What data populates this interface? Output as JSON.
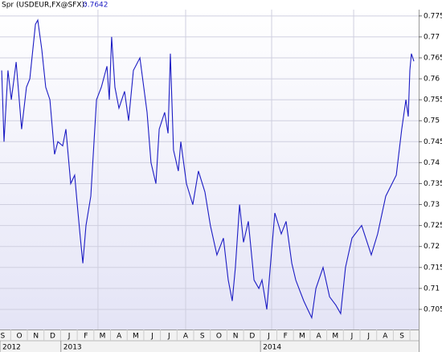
{
  "chart_data": {
    "type": "line",
    "title": "Spr (USDEUR,FX@SFX):",
    "last_value": 0.7642,
    "series": [
      {
        "name": "Spr (USDEUR,FX@SFX)",
        "color": "#1c1cc4",
        "x": [
          0.44,
          0.58,
          0.82,
          1.02,
          1.31,
          1.64,
          1.93,
          2.13,
          2.47,
          2.61,
          2.85,
          3.09,
          3.34,
          3.62,
          3.82,
          4.11,
          4.3,
          4.59,
          4.83,
          5.03,
          5.17,
          5.32,
          5.51,
          5.8,
          5.99,
          6.14,
          6.43,
          6.77,
          6.91,
          7.05,
          7.25,
          7.49,
          7.83,
          8.07,
          8.36,
          8.75,
          9.18,
          9.42,
          9.71,
          9.91,
          10.24,
          10.44,
          10.58,
          10.77,
          11.06,
          11.21,
          11.55,
          11.93,
          12.27,
          12.66,
          12.99,
          13.38,
          13.77,
          14.06,
          14.3,
          14.49,
          14.74,
          14.98,
          15.27,
          15.61,
          15.9,
          16.09,
          16.38,
          16.67,
          16.86,
          17.25,
          17.54,
          17.88,
          18.12,
          18.31,
          18.6,
          18.84,
          19.08,
          19.33,
          19.76,
          20.15,
          20.53,
          20.82,
          21.11,
          21.5,
          22.08,
          22.66,
          23.04,
          23.53,
          24.16,
          24.49,
          24.74,
          24.88,
          24.98,
          25.07,
          25.22
        ],
        "values": [
          0.762,
          0.745,
          0.762,
          0.755,
          0.764,
          0.748,
          0.758,
          0.76,
          0.773,
          0.774,
          0.767,
          0.758,
          0.755,
          0.742,
          0.745,
          0.744,
          0.748,
          0.735,
          0.737,
          0.728,
          0.722,
          0.716,
          0.725,
          0.732,
          0.745,
          0.755,
          0.758,
          0.763,
          0.755,
          0.77,
          0.758,
          0.753,
          0.757,
          0.75,
          0.762,
          0.765,
          0.752,
          0.74,
          0.735,
          0.748,
          0.752,
          0.747,
          0.766,
          0.743,
          0.738,
          0.745,
          0.735,
          0.73,
          0.738,
          0.733,
          0.725,
          0.718,
          0.722,
          0.712,
          0.707,
          0.715,
          0.73,
          0.721,
          0.726,
          0.712,
          0.71,
          0.712,
          0.705,
          0.719,
          0.728,
          0.723,
          0.726,
          0.716,
          0.712,
          0.71,
          0.707,
          0.705,
          0.703,
          0.71,
          0.715,
          0.708,
          0.706,
          0.704,
          0.715,
          0.722,
          0.725,
          0.718,
          0.723,
          0.732,
          0.737,
          0.748,
          0.755,
          0.751,
          0.762,
          0.766,
          0.7642
        ]
      }
    ],
    "xlim": [
      0.34,
      25.51
    ],
    "xticks": [
      {
        "value": 0.5,
        "label": "S"
      },
      {
        "value": 1.5,
        "label": "O"
      },
      {
        "value": 2.5,
        "label": "N"
      },
      {
        "value": 3.5,
        "label": "D"
      },
      {
        "value": 4.5,
        "label": "J"
      },
      {
        "value": 5.5,
        "label": "F"
      },
      {
        "value": 6.5,
        "label": "M"
      },
      {
        "value": 7.5,
        "label": "A"
      },
      {
        "value": 8.5,
        "label": "M"
      },
      {
        "value": 9.5,
        "label": "J"
      },
      {
        "value": 10.5,
        "label": "J"
      },
      {
        "value": 11.5,
        "label": "A"
      },
      {
        "value": 12.5,
        "label": "S"
      },
      {
        "value": 13.5,
        "label": "O"
      },
      {
        "value": 14.5,
        "label": "N"
      },
      {
        "value": 15.5,
        "label": "D"
      },
      {
        "value": 16.5,
        "label": "J"
      },
      {
        "value": 17.5,
        "label": "F"
      },
      {
        "value": 18.5,
        "label": "M"
      },
      {
        "value": 19.5,
        "label": "A"
      },
      {
        "value": 20.5,
        "label": "M"
      },
      {
        "value": 21.5,
        "label": "J"
      },
      {
        "value": 22.5,
        "label": "J"
      },
      {
        "value": 23.5,
        "label": "A"
      },
      {
        "value": 24.5,
        "label": "S"
      }
    ],
    "years": [
      {
        "value": 0.34,
        "label": "2012"
      },
      {
        "value": 4,
        "label": "2013"
      },
      {
        "value": 16,
        "label": "2014"
      }
    ],
    "xgrid": [
      6.23,
      11.5,
      16.67,
      21.6
    ],
    "ylim": [
      0.7002,
      0.7765
    ],
    "yticks": [
      0.705,
      0.71,
      0.715,
      0.72,
      0.725,
      0.73,
      0.735,
      0.74,
      0.745,
      0.75,
      0.755,
      0.76,
      0.765,
      0.77,
      0.775
    ],
    "grid": true
  }
}
